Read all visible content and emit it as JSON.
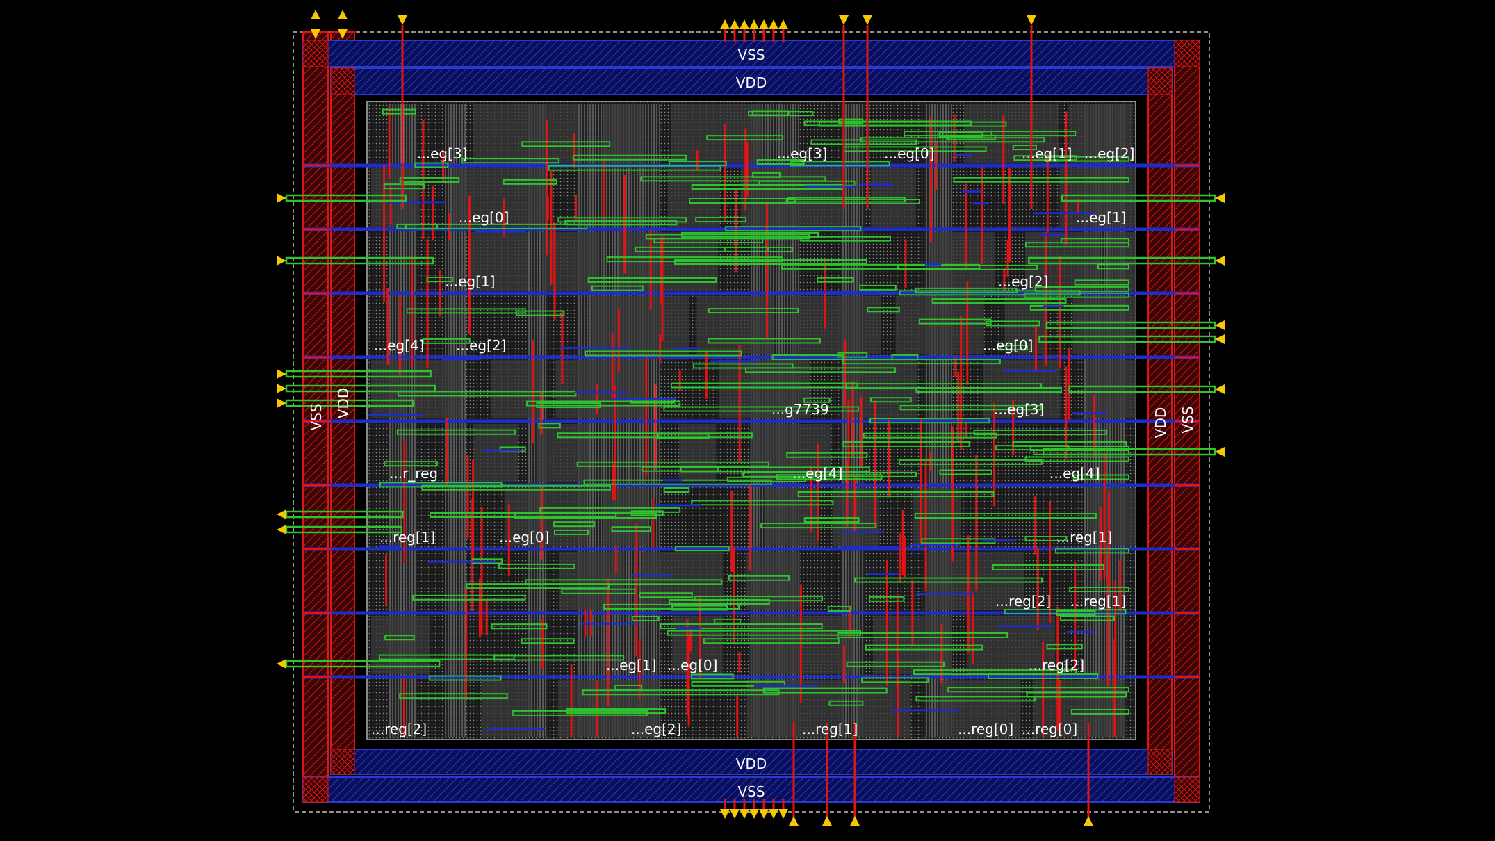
{
  "rails": {
    "top_vss": "VSS",
    "top_vdd": "VDD",
    "bottom_vdd": "VDD",
    "bottom_vss": "VSS",
    "left_vss": "VSS",
    "left_vdd": "VDD",
    "right_vdd": "VDD",
    "right_vss": "VSS"
  },
  "cell_labels": [
    "...eg[3]",
    "...eg[3]",
    "...eg[0]",
    "...eg[1]",
    "...eg[2]",
    "...eg[0]",
    "...eg[1]",
    "...eg[1]",
    "...eg[2]",
    "...eg[4]",
    "...eg[2]",
    "...eg[0]",
    "...g7739",
    "...eg[3]",
    "...r_reg",
    "...eg[4]",
    "...eg[4]",
    "...reg[1]",
    "...eg[0]",
    "...reg[1]",
    "...reg[2]",
    "...reg[1]",
    "...eg[1]",
    "...eg[0]",
    "...reg[2]",
    "...reg[2]",
    "...eg[2]",
    "...reg[1]",
    "...reg[0]",
    "...reg[0]"
  ],
  "colors": {
    "background": "#000000",
    "metal1_blue": "#1e2cc8",
    "metal2_red": "#e01414",
    "metal3_green": "#2ec42e",
    "pin_yellow": "#f5c800",
    "text": "#ffffff"
  }
}
